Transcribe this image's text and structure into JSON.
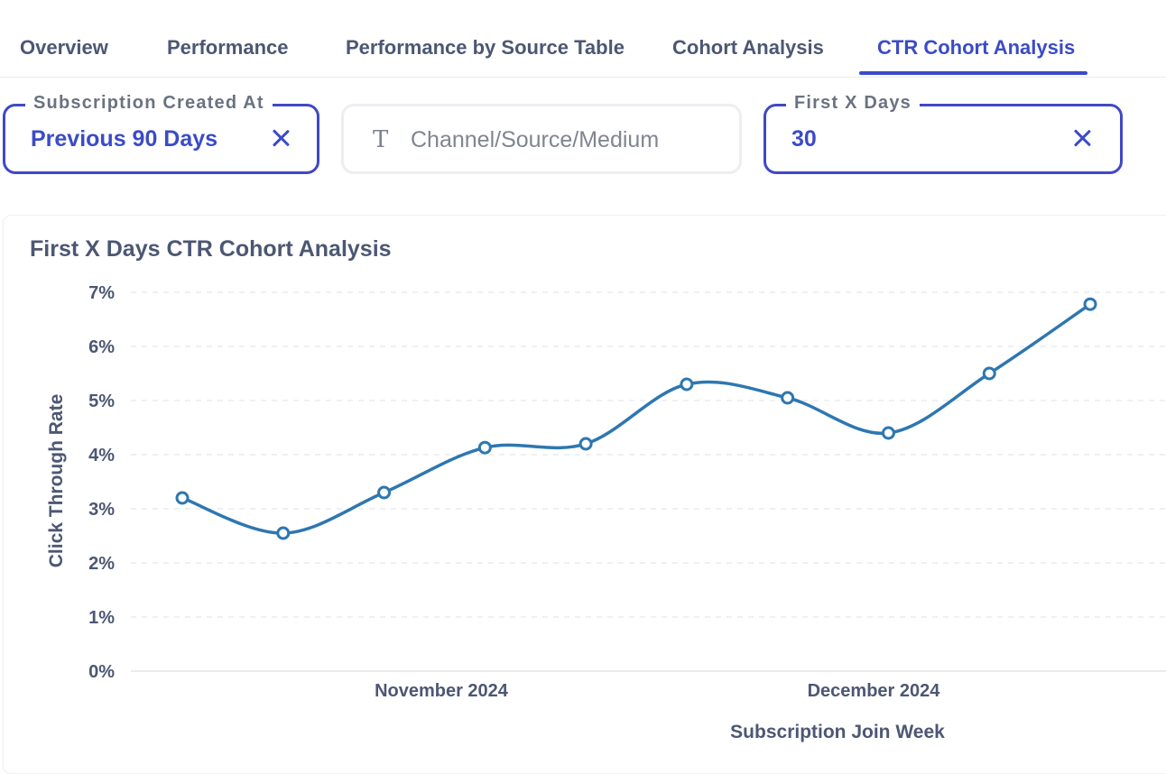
{
  "tabs": [
    {
      "label": "Overview"
    },
    {
      "label": "Performance"
    },
    {
      "label": "Performance by Source Table"
    },
    {
      "label": "Cohort Analysis"
    },
    {
      "label": "CTR Cohort Analysis",
      "active": true
    }
  ],
  "filters": {
    "subscription_created": {
      "legend": "Subscription Created At",
      "value": "Previous 90 Days"
    },
    "channel": {
      "icon": "text-icon",
      "placeholder": "Channel/Source/Medium"
    },
    "first_x_days": {
      "legend": "First X Days",
      "value": "30"
    }
  },
  "colors": {
    "accent": "#3b4bc8",
    "line": "#2e77b0"
  },
  "card": {
    "title": "First X Days CTR Cohort Analysis"
  },
  "chart_data": {
    "type": "line",
    "title": "First X Days CTR Cohort Analysis",
    "xlabel": "Subscription Join Week",
    "ylabel": "Click Through Rate",
    "y_ticks": [
      "0%",
      "1%",
      "2%",
      "3%",
      "4%",
      "5%",
      "6%",
      "7%"
    ],
    "ylim": [
      0,
      7
    ],
    "x_ticks": [
      "November 2024",
      "December 2024"
    ],
    "grid": true,
    "series": [
      {
        "values": [
          3.2,
          2.55,
          3.3,
          4.13,
          4.2,
          5.3,
          5.05,
          4.4,
          5.5,
          6.78
        ]
      }
    ]
  }
}
